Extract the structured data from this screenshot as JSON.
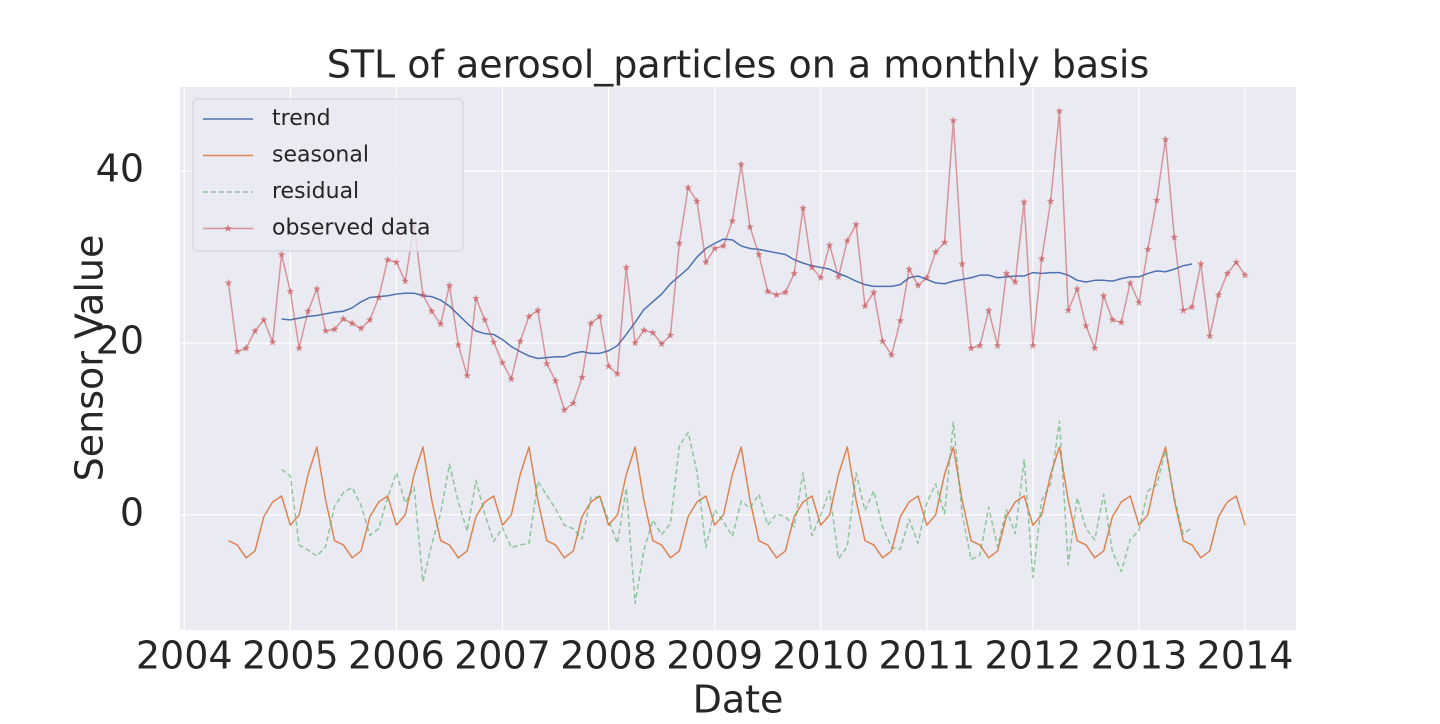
{
  "chart_data": {
    "type": "line",
    "title": "STL of aerosol_particles on a monthly basis",
    "x_label": "Date",
    "y_label": "Sensor Value",
    "xlim": [
      2003.96,
      2014.48
    ],
    "xticks": [
      2004,
      2005,
      2006,
      2007,
      2008,
      2009,
      2010,
      2011,
      2012,
      2013,
      2014
    ],
    "ylim": [
      -13.4,
      49.8
    ],
    "yticks": [
      0,
      20,
      40
    ],
    "grid": true,
    "legend": "upper left",
    "x": [
      2004.417,
      2004.5,
      2004.583,
      2004.667,
      2004.75,
      2004.833,
      2004.917,
      2005.0,
      2005.083,
      2005.167,
      2005.25,
      2005.333,
      2005.417,
      2005.5,
      2005.583,
      2005.667,
      2005.75,
      2005.833,
      2005.917,
      2006.0,
      2006.083,
      2006.167,
      2006.25,
      2006.333,
      2006.417,
      2006.5,
      2006.583,
      2006.667,
      2006.75,
      2006.833,
      2006.917,
      2007.0,
      2007.083,
      2007.167,
      2007.25,
      2007.333,
      2007.417,
      2007.5,
      2007.583,
      2007.667,
      2007.75,
      2007.833,
      2007.917,
      2008.0,
      2008.083,
      2008.167,
      2008.25,
      2008.333,
      2008.417,
      2008.5,
      2008.583,
      2008.667,
      2008.75,
      2008.833,
      2008.917,
      2009.0,
      2009.083,
      2009.167,
      2009.25,
      2009.333,
      2009.417,
      2009.5,
      2009.583,
      2009.667,
      2009.75,
      2009.833,
      2009.917,
      2010.0,
      2010.083,
      2010.167,
      2010.25,
      2010.333,
      2010.417,
      2010.5,
      2010.583,
      2010.667,
      2010.75,
      2010.833,
      2010.917,
      2011.0,
      2011.083,
      2011.167,
      2011.25,
      2011.333,
      2011.417,
      2011.5,
      2011.583,
      2011.667,
      2011.75,
      2011.833,
      2011.917,
      2012.0,
      2012.083,
      2012.167,
      2012.25,
      2012.333,
      2012.417,
      2012.5,
      2012.583,
      2012.667,
      2012.75,
      2012.833,
      2012.917,
      2013.0,
      2013.083,
      2013.167,
      2013.25,
      2013.333,
      2013.417,
      2013.5,
      2013.583,
      2013.667,
      2013.75,
      2013.833,
      2013.917,
      2014.0
    ],
    "series": [
      {
        "name": "trend",
        "color": "#4c72b0",
        "linestyle": "solid",
        "values": [
          null,
          null,
          null,
          null,
          null,
          null,
          22.8,
          22.7,
          22.9,
          23.1,
          23.2,
          23.4,
          23.6,
          23.7,
          24.1,
          24.8,
          25.3,
          25.4,
          25.5,
          25.7,
          25.8,
          25.8,
          25.5,
          25.4,
          25.0,
          24.3,
          23.3,
          22.3,
          21.4,
          21.1,
          21.0,
          20.4,
          19.6,
          19.0,
          18.5,
          18.2,
          18.3,
          18.4,
          18.4,
          18.8,
          19.0,
          18.8,
          18.8,
          19.1,
          19.7,
          21.0,
          22.4,
          23.9,
          24.8,
          25.7,
          26.9,
          27.8,
          28.7,
          30.0,
          31.0,
          31.6,
          32.1,
          32.0,
          31.3,
          31.0,
          30.9,
          30.7,
          30.5,
          30.3,
          29.7,
          29.3,
          29.0,
          28.8,
          28.6,
          28.1,
          27.7,
          27.2,
          26.8,
          26.6,
          26.6,
          26.6,
          26.8,
          27.6,
          27.8,
          27.4,
          27.0,
          26.9,
          27.2,
          27.4,
          27.6,
          27.9,
          27.9,
          27.6,
          27.7,
          27.8,
          27.8,
          28.2,
          28.1,
          28.2,
          28.2,
          27.9,
          27.3,
          27.1,
          27.3,
          27.3,
          27.2,
          27.5,
          27.7,
          27.7,
          28.1,
          28.4,
          28.3,
          28.6,
          29.0,
          29.2,
          null,
          null,
          null,
          null,
          null,
          null
        ]
      },
      {
        "name": "seasonal",
        "color": "#dd8452",
        "linestyle": "solid",
        "values": [
          -3.0,
          -3.5,
          -5.0,
          -4.2,
          -0.2,
          1.5,
          2.2,
          -1.2,
          0.0,
          4.7,
          7.9,
          1.7,
          -3.0,
          -3.5,
          -5.0,
          -4.2,
          -0.2,
          1.5,
          2.2,
          -1.2,
          0.0,
          4.7,
          7.9,
          1.7,
          -3.0,
          -3.5,
          -5.0,
          -4.2,
          -0.2,
          1.5,
          2.2,
          -1.2,
          0.0,
          4.7,
          7.9,
          1.7,
          -3.0,
          -3.5,
          -5.0,
          -4.2,
          -0.2,
          1.5,
          2.2,
          -1.2,
          0.0,
          4.7,
          7.9,
          1.7,
          -3.0,
          -3.5,
          -5.0,
          -4.2,
          -0.2,
          1.5,
          2.2,
          -1.2,
          0.0,
          4.7,
          7.9,
          1.7,
          -3.0,
          -3.5,
          -5.0,
          -4.2,
          -0.2,
          1.5,
          2.2,
          -1.2,
          0.0,
          4.7,
          7.9,
          1.7,
          -3.0,
          -3.5,
          -5.0,
          -4.2,
          -0.2,
          1.5,
          2.2,
          -1.2,
          0.0,
          4.7,
          7.9,
          1.7,
          -3.0,
          -3.5,
          -5.0,
          -4.2,
          -0.2,
          1.5,
          2.2,
          -1.2,
          0.0,
          4.7,
          7.9,
          1.7,
          -3.0,
          -3.5,
          -5.0,
          -4.2,
          -0.2,
          1.5,
          2.2,
          -1.2,
          0.0,
          4.7,
          7.9,
          1.7,
          -3.0,
          -3.5,
          -5.0,
          -4.2,
          -0.2,
          1.5,
          2.2,
          -1.2
        ]
      },
      {
        "name": "residual",
        "color": "#55a868",
        "linestyle": "dashed",
        "values": [
          null,
          null,
          null,
          null,
          null,
          null,
          5.3,
          4.5,
          -3.5,
          -4.1,
          -4.8,
          -3.7,
          1.0,
          2.6,
          3.2,
          1.1,
          -2.4,
          -1.6,
          2.0,
          4.9,
          1.4,
          3.2,
          -7.8,
          -3.4,
          0.2,
          5.9,
          1.5,
          -1.9,
          4.0,
          0.1,
          -3.1,
          -1.5,
          -3.8,
          -3.5,
          -3.3,
          3.9,
          2.3,
          0.7,
          -1.2,
          -1.6,
          -2.8,
          2.0,
          2.1,
          -0.6,
          -3.3,
          3.1,
          -10.3,
          -4.1,
          -0.6,
          -2.3,
          -1.0,
          8.0,
          9.6,
          5.0,
          -3.8,
          0.6,
          -0.8,
          -2.5,
          1.6,
          0.8,
          2.4,
          -1.2,
          0.1,
          -0.2,
          -1.4,
          4.9,
          -2.4,
          0.0,
          2.8,
          -5.1,
          -3.7,
          4.9,
          0.5,
          2.8,
          -1.4,
          -3.8,
          -4.0,
          -0.5,
          -3.3,
          1.4,
          3.6,
          0.1,
          10.8,
          0.1,
          -5.2,
          -4.7,
          0.9,
          -3.7,
          0.6,
          -2.2,
          6.4,
          -7.3,
          1.7,
          3.6,
          10.9,
          -5.8,
          2.0,
          -1.6,
          -2.9,
          2.4,
          -4.3,
          -6.6,
          -2.9,
          -1.8,
          2.8,
          3.5,
          7.5,
          2.0,
          -2.2,
          -1.5,
          null,
          null,
          null,
          null,
          null,
          null
        ]
      },
      {
        "name": "observed data",
        "color": "#c44e52",
        "linestyle": "solid",
        "marker": "star",
        "values": [
          27.0,
          19.0,
          19.4,
          21.4,
          22.7,
          20.1,
          30.3,
          26.0,
          19.4,
          23.7,
          26.3,
          21.4,
          21.6,
          22.8,
          22.3,
          21.7,
          22.7,
          25.3,
          29.7,
          29.4,
          27.2,
          33.7,
          25.6,
          23.7,
          22.2,
          26.7,
          19.8,
          16.2,
          25.2,
          22.7,
          20.1,
          17.7,
          15.8,
          20.2,
          23.1,
          23.8,
          17.6,
          15.6,
          12.2,
          13.0,
          16.0,
          22.3,
          23.1,
          17.3,
          16.4,
          28.8,
          20.0,
          21.5,
          21.2,
          19.9,
          20.9,
          31.6,
          38.1,
          36.5,
          29.4,
          31.0,
          31.3,
          34.2,
          40.8,
          33.5,
          30.3,
          26.0,
          25.6,
          25.9,
          28.1,
          35.7,
          28.8,
          27.6,
          31.4,
          27.7,
          31.9,
          33.8,
          24.3,
          25.9,
          20.2,
          18.6,
          22.6,
          28.6,
          26.7,
          27.6,
          30.6,
          31.7,
          45.9,
          29.2,
          19.4,
          19.7,
          23.8,
          19.7,
          28.1,
          27.1,
          36.4,
          19.7,
          29.8,
          36.5,
          47.0,
          23.8,
          26.3,
          22.0,
          19.4,
          25.5,
          22.7,
          22.4,
          27.0,
          24.7,
          30.9,
          36.6,
          43.7,
          32.3,
          23.8,
          24.2,
          29.2,
          20.8,
          25.6,
          28.1,
          29.4,
          27.9
        ]
      }
    ]
  }
}
